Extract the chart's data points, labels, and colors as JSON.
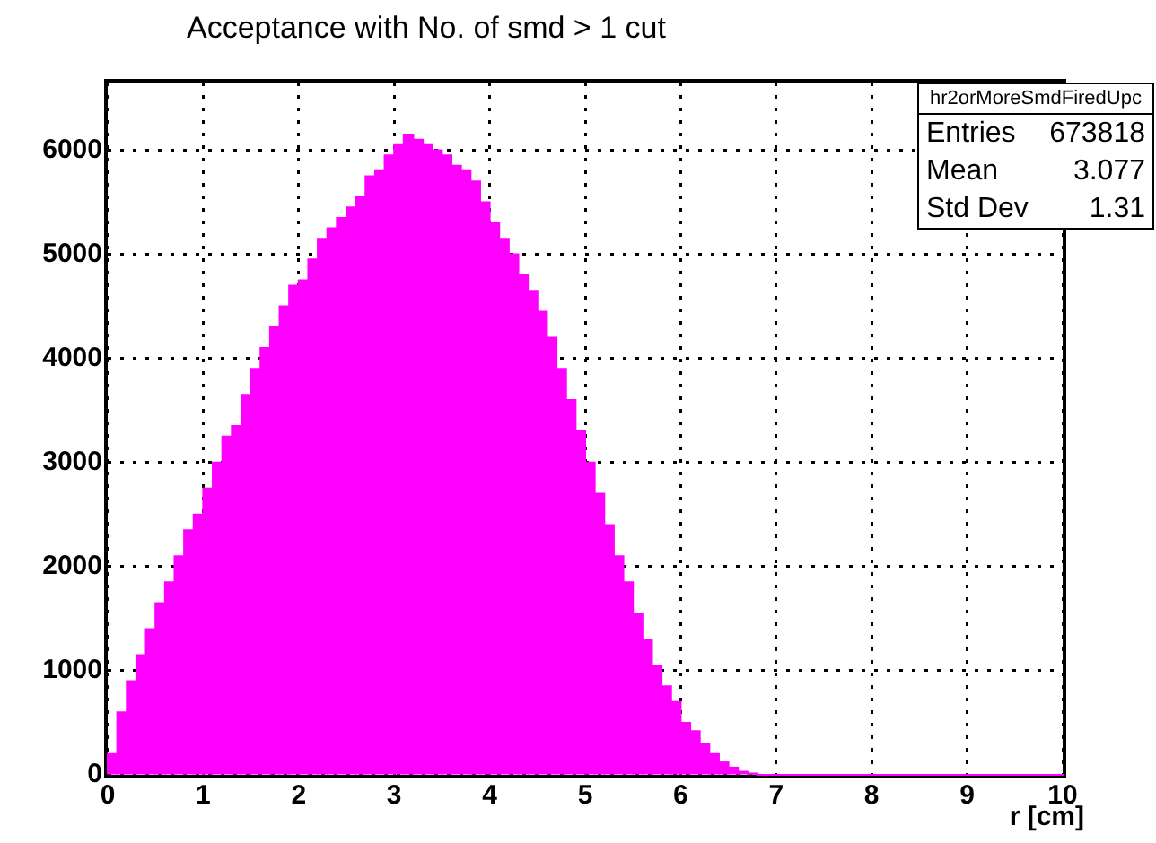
{
  "chart_data": {
    "type": "histogram",
    "title": "Acceptance with No. of smd > 1 cut",
    "xlabel": "r [cm]",
    "bins": [
      0,
      0.1,
      0.2,
      0.3,
      0.4,
      0.5,
      0.6,
      0.7,
      0.8,
      0.9,
      1,
      1.1,
      1.2,
      1.3,
      1.4,
      1.5,
      1.6,
      1.7,
      1.8,
      1.9,
      2,
      2.1,
      2.2,
      2.3,
      2.4,
      2.5,
      2.6,
      2.7,
      2.8,
      2.9,
      3,
      3.1,
      3.2,
      3.3,
      3.4,
      3.5,
      3.6,
      3.7,
      3.8,
      3.9,
      4,
      4.1,
      4.2,
      4.3,
      4.4,
      4.5,
      4.6,
      4.7,
      4.8,
      4.9,
      5,
      5.1,
      5.2,
      5.3,
      5.4,
      5.5,
      5.6,
      5.7,
      5.8,
      5.9,
      6,
      6.1,
      6.2,
      6.3,
      6.4,
      6.5,
      6.6,
      6.7,
      6.8,
      6.9,
      7,
      7.1,
      7.2,
      7.3,
      7.4,
      7.5,
      7.6,
      7.7,
      7.8,
      7.9,
      8,
      8.1,
      8.2,
      8.3,
      8.4,
      8.5,
      8.6,
      8.7,
      8.8,
      8.9,
      9,
      9.1,
      9.2,
      9.3,
      9.4,
      9.5,
      9.6,
      9.7,
      9.8,
      9.9,
      10
    ],
    "values": [
      200,
      600,
      900,
      1150,
      1400,
      1650,
      1850,
      2100,
      2350,
      2500,
      2750,
      3000,
      3250,
      3350,
      3650,
      3900,
      4100,
      4300,
      4500,
      4700,
      4750,
      4950,
      5150,
      5250,
      5350,
      5450,
      5550,
      5750,
      5800,
      5950,
      6050,
      6150,
      6100,
      6050,
      6000,
      5950,
      5850,
      5800,
      5700,
      5500,
      5300,
      5150,
      5000,
      4800,
      4650,
      4450,
      4200,
      3900,
      3600,
      3300,
      3000,
      2700,
      2400,
      2100,
      1850,
      1550,
      1300,
      1050,
      850,
      700,
      500,
      420,
      300,
      200,
      120,
      70,
      30,
      10,
      0,
      0,
      0,
      0,
      0,
      0,
      0,
      0,
      0,
      0,
      0,
      0,
      0,
      0,
      0,
      0,
      0,
      0,
      0,
      0,
      0,
      0,
      0,
      0,
      0,
      0,
      0,
      0,
      0,
      0,
      0,
      0
    ],
    "color": "#ff00ff",
    "xlim": [
      0,
      10
    ],
    "xticks": [
      0,
      1,
      2,
      3,
      4,
      5,
      6,
      7,
      8,
      9,
      10
    ],
    "ylim": [
      0,
      6650
    ],
    "yticks": [
      0,
      1000,
      2000,
      3000,
      4000,
      5000,
      6000
    ],
    "grid": true,
    "annotations": [
      "hr2orMoreSmdFiredUpc",
      "Entries 673818",
      "Mean 3.077",
      "Std Dev 1.31"
    ]
  }
}
